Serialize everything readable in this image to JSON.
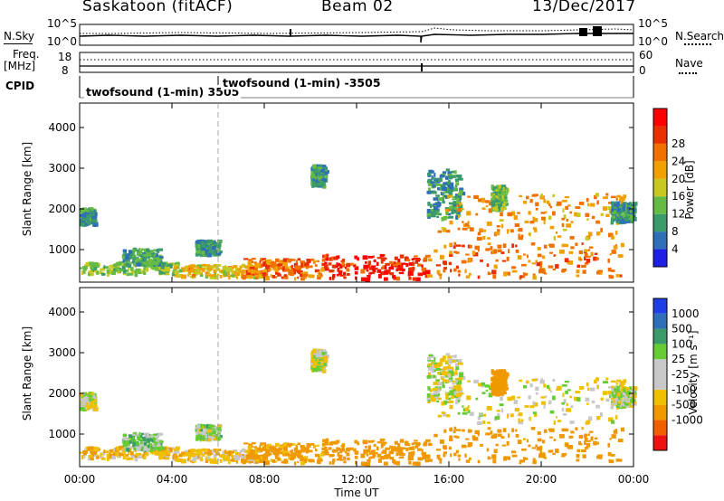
{
  "header": {
    "station": "Saskatoon (fitACF)",
    "beam": "Beam 02",
    "date": "13/Dec/2017"
  },
  "strip_labels": {
    "nsky": "N.Sky",
    "nsearch": "N.Search",
    "freq": "Freq.",
    "freq_unit": "[MHz]",
    "nave": "Nave",
    "cpid": "CPID",
    "cpid_1": "twofsound (1-min) 3505",
    "cpid_2": "twofsound (1-min) -3505"
  },
  "colors": {
    "power_scale": [
      "#1f1fe6",
      "#2e6fb8",
      "#3a9a6a",
      "#66bb44",
      "#c8c820",
      "#f0a000",
      "#f07000",
      "#e83000",
      "#ff0000"
    ],
    "velocity_scale": [
      "#ee1111",
      "#f06000",
      "#f09800",
      "#f0c000",
      "#c8c8c8",
      "#c8c8c8",
      "#66cc33",
      "#3a9a6a",
      "#2e6fb8",
      "#1f3fe6"
    ],
    "noise_line": "#000000"
  },
  "chart_data": [
    {
      "type": "line",
      "title": "N.Sky / N.Search",
      "left_ticks": [
        "10^5",
        "10^0"
      ],
      "right_ticks": [
        "10^5",
        "10^0"
      ],
      "note": "sky noise (solid) and search noise (dotted) versus time"
    },
    {
      "type": "line",
      "left_ticks": [
        "18",
        "8"
      ],
      "right_ticks": [
        "60",
        "0"
      ]
    },
    {
      "type": "heatmap",
      "ylabel": "Slant Range [km]",
      "yticks": [
        1000,
        2000,
        3000,
        4000
      ],
      "ylim": [
        200,
        4600
      ],
      "xlim": [
        0,
        24
      ],
      "colorbar_label": "Power [dB]",
      "colorbar_ticks": [
        4,
        8,
        12,
        16,
        20,
        24,
        28
      ]
    },
    {
      "type": "heatmap",
      "ylabel": "Slant Range [km]",
      "yticks": [
        1000,
        2000,
        3000,
        4000
      ],
      "ylim": [
        200,
        4600
      ],
      "xlim": [
        0,
        24
      ],
      "xlabel": "Time UT",
      "xticks": [
        "00:00",
        "04:00",
        "08:00",
        "12:00",
        "16:00",
        "20:00",
        "00:00"
      ],
      "colorbar_label": "Velocity",
      "colorbar_unit": "[m s⁻¹]",
      "colorbar_ticks": [
        "1000",
        "500",
        "100",
        "25",
        "-25",
        "-100",
        "-500",
        "-1000"
      ]
    }
  ],
  "echo_regions": [
    {
      "t0": 0.0,
      "t1": 0.6,
      "r0": 1650,
      "r1": 2050,
      "power": 8,
      "vel": 0
    },
    {
      "t0": 0.0,
      "t1": 4.2,
      "r0": 420,
      "r1": 720,
      "power": 13,
      "vel": -80
    },
    {
      "t0": 1.8,
      "t1": 3.5,
      "r0": 650,
      "r1": 1050,
      "power": 10,
      "vel": 60
    },
    {
      "t0": 4.0,
      "t1": 8.0,
      "r0": 350,
      "r1": 650,
      "power": 17,
      "vel": -60
    },
    {
      "t0": 5.0,
      "t1": 6.0,
      "r0": 900,
      "r1": 1250,
      "power": 8,
      "vel": 40
    },
    {
      "t0": 7.0,
      "t1": 10.5,
      "r0": 320,
      "r1": 800,
      "power": 22,
      "vel": -150
    },
    {
      "t0": 10.0,
      "t1": 10.6,
      "r0": 2600,
      "r1": 3100,
      "power": 9,
      "vel": 0
    },
    {
      "t0": 10.5,
      "t1": 15.0,
      "r0": 320,
      "r1": 900,
      "power": 27,
      "vel": -200
    },
    {
      "t0": 15.0,
      "t1": 16.5,
      "r0": 1800,
      "r1": 3000,
      "power": 9,
      "vel": 0
    },
    {
      "t0": 15.5,
      "t1": 23.6,
      "r0": 1300,
      "r1": 2400,
      "power": 20,
      "vel": -20
    },
    {
      "t0": 15.0,
      "t1": 23.5,
      "r0": 350,
      "r1": 1200,
      "power": 22,
      "vel": -300
    },
    {
      "t0": 17.8,
      "t1": 18.4,
      "r0": 2000,
      "r1": 2600,
      "power": 12,
      "vel": -200
    },
    {
      "t0": 23.0,
      "t1": 24.0,
      "r0": 1700,
      "r1": 2200,
      "power": 9,
      "vel": 0
    }
  ]
}
